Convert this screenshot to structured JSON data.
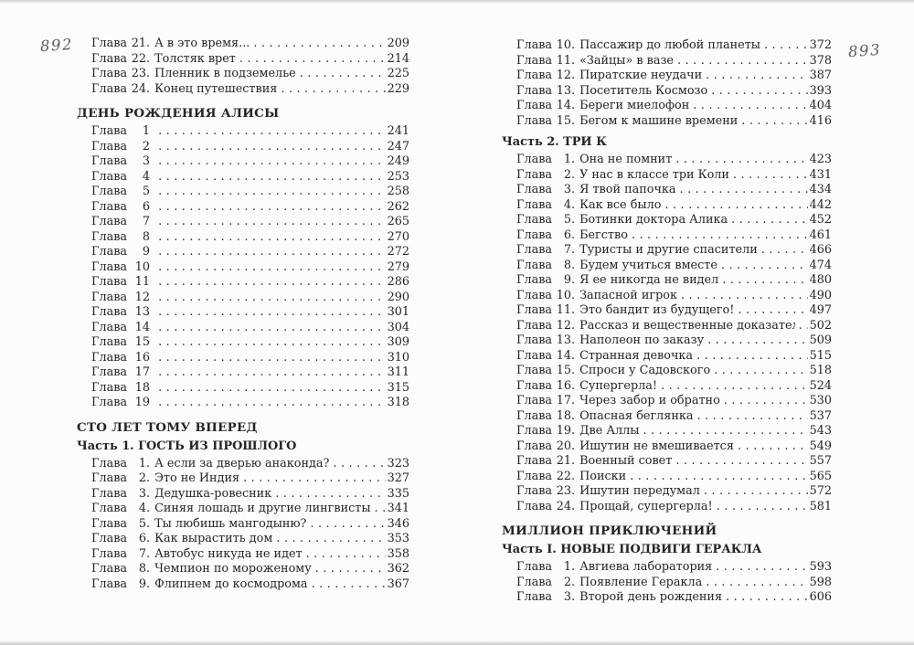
{
  "colors": {
    "text": "#242424",
    "folio": "#5e5e5e",
    "page_bg": "#fcfcfc"
  },
  "left_page": {
    "folio": "892",
    "prev_book_end": {
      "entries": [
        {
          "word": "Глава",
          "num": "21.",
          "title": "А в это время...",
          "page": "209"
        },
        {
          "word": "Глава",
          "num": "22.",
          "title": "Толстяк врет",
          "page": "214"
        },
        {
          "word": "Глава",
          "num": "23.",
          "title": "Пленник в подземелье",
          "page": "225"
        },
        {
          "word": "Глава",
          "num": "24.",
          "title": "Конец путешествия",
          "page": "229"
        }
      ]
    },
    "birthday_book": {
      "title": "ДЕНЬ РОЖДЕНИЯ АЛИСЫ",
      "entries": [
        {
          "word": "Глава",
          "num": "1",
          "title": "",
          "page": "241"
        },
        {
          "word": "Глава",
          "num": "2",
          "title": "",
          "page": "247"
        },
        {
          "word": "Глава",
          "num": "3",
          "title": "",
          "page": "249"
        },
        {
          "word": "Глава",
          "num": "4",
          "title": "",
          "page": "253"
        },
        {
          "word": "Глава",
          "num": "5",
          "title": "",
          "page": "258"
        },
        {
          "word": "Глава",
          "num": "6",
          "title": "",
          "page": "262"
        },
        {
          "word": "Глава",
          "num": "7",
          "title": "",
          "page": "265"
        },
        {
          "word": "Глава",
          "num": "8",
          "title": "",
          "page": "270"
        },
        {
          "word": "Глава",
          "num": "9",
          "title": "",
          "page": "272"
        },
        {
          "word": "Глава",
          "num": "10",
          "title": "",
          "page": "279"
        },
        {
          "word": "Глава",
          "num": "11",
          "title": "",
          "page": "286"
        },
        {
          "word": "Глава",
          "num": "12",
          "title": "",
          "page": "290"
        },
        {
          "word": "Глава",
          "num": "13",
          "title": "",
          "page": "301"
        },
        {
          "word": "Глава",
          "num": "14",
          "title": "",
          "page": "304"
        },
        {
          "word": "Глава",
          "num": "15",
          "title": "",
          "page": "309"
        },
        {
          "word": "Глава",
          "num": "16",
          "title": "",
          "page": "310"
        },
        {
          "word": "Глава",
          "num": "17",
          "title": "",
          "page": "311"
        },
        {
          "word": "Глава",
          "num": "18",
          "title": "",
          "page": "315"
        },
        {
          "word": "Глава",
          "num": "19",
          "title": "",
          "page": "318"
        }
      ]
    },
    "hundred_years_book": {
      "title": "СТО ЛЕТ ТОМУ ВПЕРЕД",
      "part1": {
        "title": "Часть 1. ГОСТЬ ИЗ ПРОШЛОГО",
        "entries": [
          {
            "word": "Глава",
            "num": "1.",
            "title": "А если за дверью анаконда?",
            "page": "323"
          },
          {
            "word": "Глава",
            "num": "2.",
            "title": "Это не Индия",
            "page": "327"
          },
          {
            "word": "Глава",
            "num": "3.",
            "title": "Дедушка-ровесник",
            "page": "335"
          },
          {
            "word": "Глава",
            "num": "4.",
            "title": "Синяя лошадь и другие лингвисты",
            "page": "341"
          },
          {
            "word": "Глава",
            "num": "5.",
            "title": "Ты любишь мангодыню?",
            "page": "346"
          },
          {
            "word": "Глава",
            "num": "6.",
            "title": "Как вырастить дом",
            "page": "353"
          },
          {
            "word": "Глава",
            "num": "7.",
            "title": "Автобус никуда не идет",
            "page": "358"
          },
          {
            "word": "Глава",
            "num": "8.",
            "title": "Чемпион по мороженому",
            "page": "362"
          },
          {
            "word": "Глава",
            "num": "9.",
            "title": "Флипнем до космодрома",
            "page": "367"
          }
        ]
      }
    }
  },
  "right_page": {
    "folio": "893",
    "part1_continued": {
      "entries": [
        {
          "word": "Глава",
          "num": "10.",
          "title": "Пассажир до любой планеты",
          "page": "372"
        },
        {
          "word": "Глава",
          "num": "11.",
          "title": "«Зайцы» в вазе",
          "page": "378"
        },
        {
          "word": "Глава",
          "num": "12.",
          "title": "Пиратские неудачи",
          "page": "387"
        },
        {
          "word": "Глава",
          "num": "13.",
          "title": "Посетитель Космозо",
          "page": "393"
        },
        {
          "word": "Глава",
          "num": "14.",
          "title": "Береги миелофон",
          "page": "404"
        },
        {
          "word": "Глава",
          "num": "15.",
          "title": "Бегом к машине времени",
          "page": "416"
        }
      ]
    },
    "part2": {
      "title": "Часть 2. ТРИ К",
      "entries": [
        {
          "word": "Глава",
          "num": "1.",
          "title": "Она не помнит",
          "page": "423"
        },
        {
          "word": "Глава",
          "num": "2.",
          "title": "У нас в классе три Коли",
          "page": "431"
        },
        {
          "word": "Глава",
          "num": "3.",
          "title": "Я твой папочка",
          "page": "434"
        },
        {
          "word": "Глава",
          "num": "4.",
          "title": "Как все было",
          "page": "442"
        },
        {
          "word": "Глава",
          "num": "5.",
          "title": "Ботинки доктора Алика",
          "page": "452"
        },
        {
          "word": "Глава",
          "num": "6.",
          "title": "Бегство",
          "page": "461"
        },
        {
          "word": "Глава",
          "num": "7.",
          "title": "Туристы и другие спасители",
          "page": "466"
        },
        {
          "word": "Глава",
          "num": "8.",
          "title": "Будем учиться вместе",
          "page": "474"
        },
        {
          "word": "Глава",
          "num": "9.",
          "title": "Я ее никогда не видел",
          "page": "480"
        },
        {
          "word": "Глава",
          "num": "10.",
          "title": "Запасной игрок",
          "page": "490"
        },
        {
          "word": "Глава",
          "num": "11.",
          "title": "Это бандит из будущего!",
          "page": "497"
        },
        {
          "word": "Глава",
          "num": "12.",
          "title": "Рассказ и вещественные доказательства",
          "page": "502"
        },
        {
          "word": "Глава",
          "num": "13.",
          "title": "Наполеон по заказу",
          "page": "509"
        },
        {
          "word": "Глава",
          "num": "14.",
          "title": "Странная девочка",
          "page": "515"
        },
        {
          "word": "Глава",
          "num": "15.",
          "title": "Спроси у Садовского",
          "page": "518"
        },
        {
          "word": "Глава",
          "num": "16.",
          "title": "Супергерла!",
          "page": "524"
        },
        {
          "word": "Глава",
          "num": "17.",
          "title": "Через забор и обратно",
          "page": "530"
        },
        {
          "word": "Глава",
          "num": "18.",
          "title": "Опасная беглянка",
          "page": "537"
        },
        {
          "word": "Глава",
          "num": "19.",
          "title": "Две Аллы",
          "page": "543"
        },
        {
          "word": "Глава",
          "num": "20.",
          "title": "Ишутин не вмешивается",
          "page": "549"
        },
        {
          "word": "Глава",
          "num": "21.",
          "title": "Военный совет",
          "page": "557"
        },
        {
          "word": "Глава",
          "num": "22.",
          "title": "Поиски",
          "page": "565"
        },
        {
          "word": "Глава",
          "num": "23.",
          "title": "Ишутин передумал",
          "page": "572"
        },
        {
          "word": "Глава",
          "num": "24.",
          "title": "Прощай, супергерла!",
          "page": "581"
        }
      ]
    },
    "million_book": {
      "title": "МИЛЛИОН ПРИКЛЮЧЕНИЙ",
      "part1": {
        "title": "Часть I. НОВЫЕ ПОДВИГИ ГЕРАКЛА",
        "entries": [
          {
            "word": "Глава",
            "num": "1.",
            "title": "Авгиева лаборатория",
            "page": "593"
          },
          {
            "word": "Глава",
            "num": "2.",
            "title": "Появление Геракла",
            "page": "598"
          },
          {
            "word": "Глава",
            "num": "3.",
            "title": "Второй день рождения",
            "page": "606"
          }
        ]
      }
    }
  }
}
